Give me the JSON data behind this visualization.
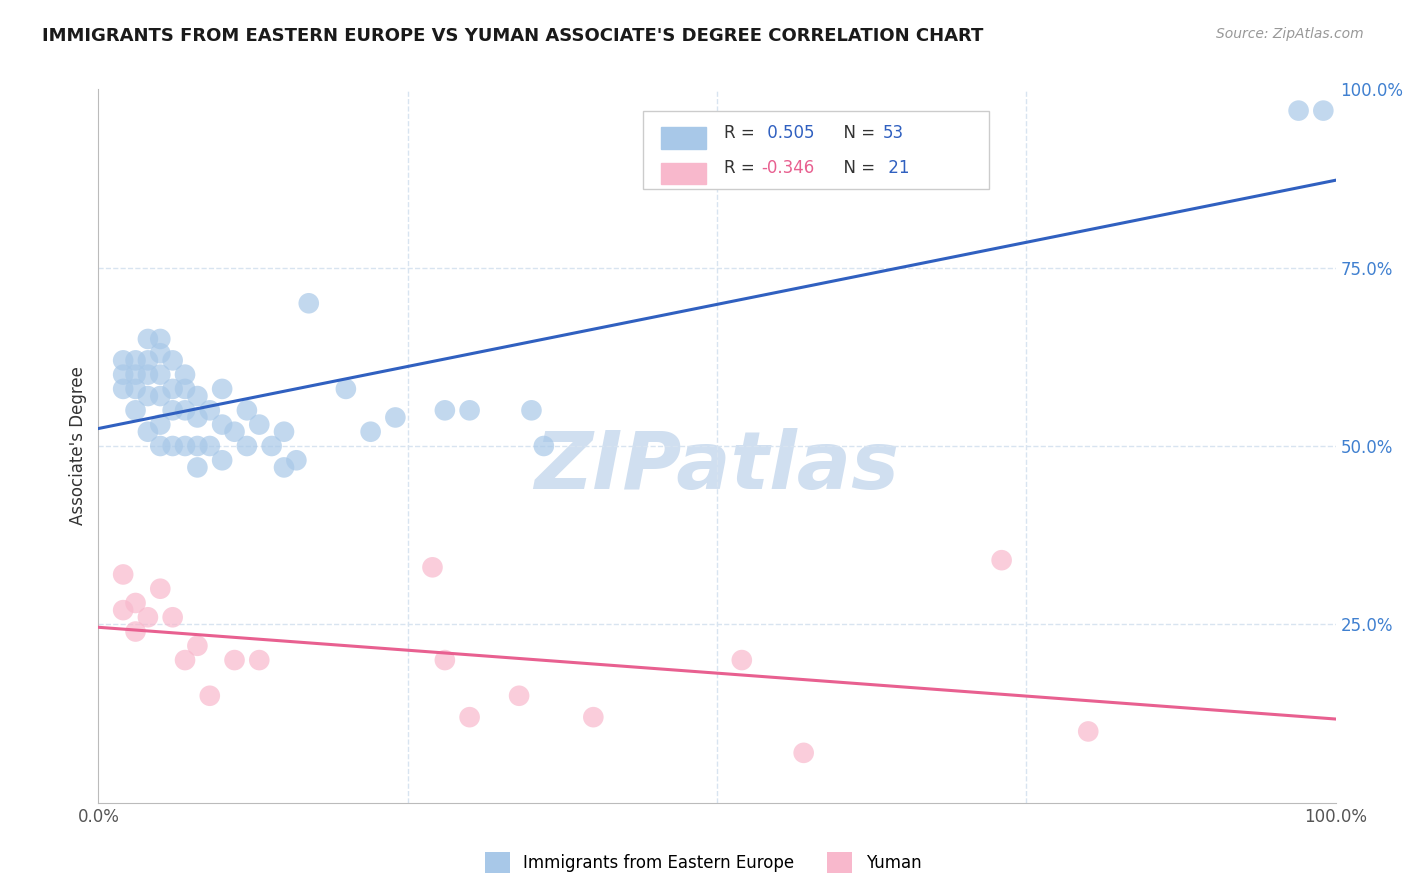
{
  "title": "IMMIGRANTS FROM EASTERN EUROPE VS YUMAN ASSOCIATE'S DEGREE CORRELATION CHART",
  "source_text": "Source: ZipAtlas.com",
  "ylabel": "Associate's Degree",
  "legend_label1": "Immigrants from Eastern Europe",
  "legend_label2": "Yuman",
  "R1": 0.505,
  "N1": 53,
  "R2": -0.346,
  "N2": 21,
  "blue_color": "#a8c8e8",
  "blue_line_color": "#3060c0",
  "pink_color": "#f8b8cc",
  "pink_line_color": "#e86090",
  "title_color": "#1a1a1a",
  "watermark_color": "#d0dff0",
  "blue_scatter_x": [
    0.02,
    0.02,
    0.02,
    0.03,
    0.03,
    0.03,
    0.03,
    0.04,
    0.04,
    0.04,
    0.04,
    0.04,
    0.05,
    0.05,
    0.05,
    0.05,
    0.05,
    0.05,
    0.06,
    0.06,
    0.06,
    0.06,
    0.07,
    0.07,
    0.07,
    0.07,
    0.08,
    0.08,
    0.08,
    0.08,
    0.09,
    0.09,
    0.1,
    0.1,
    0.1,
    0.11,
    0.12,
    0.12,
    0.13,
    0.14,
    0.15,
    0.15,
    0.16,
    0.17,
    0.2,
    0.22,
    0.24,
    0.28,
    0.3,
    0.35,
    0.36,
    0.97,
    0.99
  ],
  "blue_scatter_y": [
    0.62,
    0.6,
    0.58,
    0.62,
    0.6,
    0.58,
    0.55,
    0.65,
    0.62,
    0.6,
    0.57,
    0.52,
    0.65,
    0.63,
    0.6,
    0.57,
    0.53,
    0.5,
    0.62,
    0.58,
    0.55,
    0.5,
    0.6,
    0.58,
    0.55,
    0.5,
    0.57,
    0.54,
    0.5,
    0.47,
    0.55,
    0.5,
    0.58,
    0.53,
    0.48,
    0.52,
    0.55,
    0.5,
    0.53,
    0.5,
    0.52,
    0.47,
    0.48,
    0.7,
    0.58,
    0.52,
    0.54,
    0.55,
    0.55,
    0.55,
    0.5,
    0.97,
    0.97
  ],
  "pink_scatter_x": [
    0.02,
    0.02,
    0.03,
    0.03,
    0.04,
    0.05,
    0.06,
    0.07,
    0.08,
    0.09,
    0.11,
    0.13,
    0.27,
    0.28,
    0.3,
    0.34,
    0.4,
    0.52,
    0.57,
    0.73,
    0.8
  ],
  "pink_scatter_y": [
    0.32,
    0.27,
    0.28,
    0.24,
    0.26,
    0.3,
    0.26,
    0.2,
    0.22,
    0.15,
    0.2,
    0.2,
    0.33,
    0.2,
    0.12,
    0.15,
    0.12,
    0.2,
    0.07,
    0.34,
    0.1
  ],
  "xlim": [
    0.0,
    1.0
  ],
  "ylim": [
    0.0,
    1.0
  ],
  "grid_color": "#d8e4f0",
  "background_color": "#ffffff",
  "right_tick_color": "#4080d0"
}
